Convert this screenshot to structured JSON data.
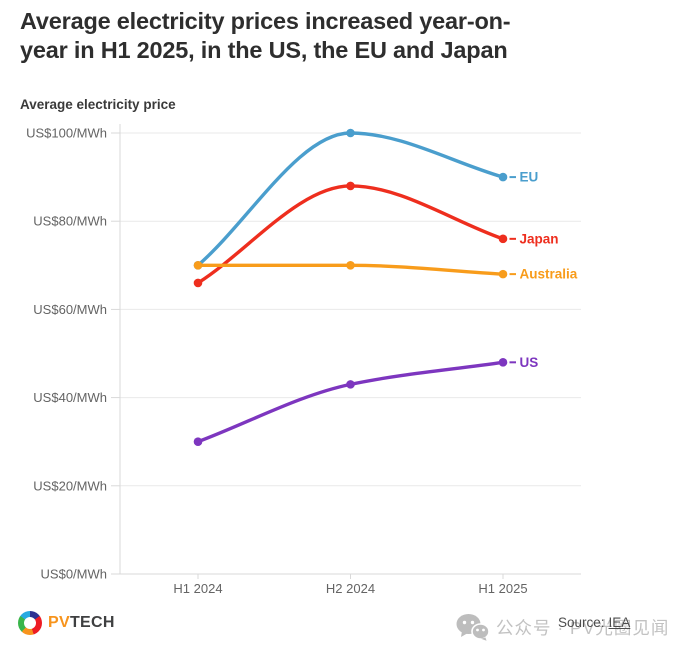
{
  "header": {
    "title_line1": "Average electricity prices increased year-on-",
    "title_line2": "year in H1 2025, in the US, the EU and Japan",
    "subtitle": "Average electricity price"
  },
  "chart_data": {
    "type": "line",
    "curve": "monotone",
    "categories": [
      "H1 2024",
      "H2 2024",
      "H1 2025"
    ],
    "series": [
      {
        "name": "EU",
        "color": "#4a9ecd",
        "values": [
          70,
          100,
          90
        ]
      },
      {
        "name": "Japan",
        "color": "#ee2e1e",
        "values": [
          66,
          88,
          76
        ]
      },
      {
        "name": "Australia",
        "color": "#f89c1b",
        "values": [
          70,
          70,
          68
        ]
      },
      {
        "name": "US",
        "color": "#7d36bf",
        "values": [
          30,
          43,
          48
        ]
      }
    ],
    "ylim": [
      0,
      100
    ],
    "yticks": [
      0,
      20,
      40,
      60,
      80,
      100
    ],
    "ytick_labels": [
      "US$0/MWh",
      "US$20/MWh",
      "US$40/MWh",
      "US$60/MWh",
      "US$80/MWh",
      "US$100/MWh"
    ],
    "grid": true,
    "legend": "line-end-labels",
    "title": "Average electricity prices increased year-on-year in H1 2025, in the US, the EU and Japan",
    "subtitle": "Average electricity price"
  },
  "footer": {
    "logo_pv": "PV",
    "logo_tech": "TECH",
    "watermark_text": "公众号 · PV光圈见闻",
    "source_label": "Source:",
    "source_link": "IEA"
  },
  "colors": {
    "title_text": "#2e2e2e",
    "axis_text": "#646464",
    "grid_line": "#e9e9e9",
    "axis_line": "#d9d9d9",
    "watermark": "#c2c2c2"
  }
}
